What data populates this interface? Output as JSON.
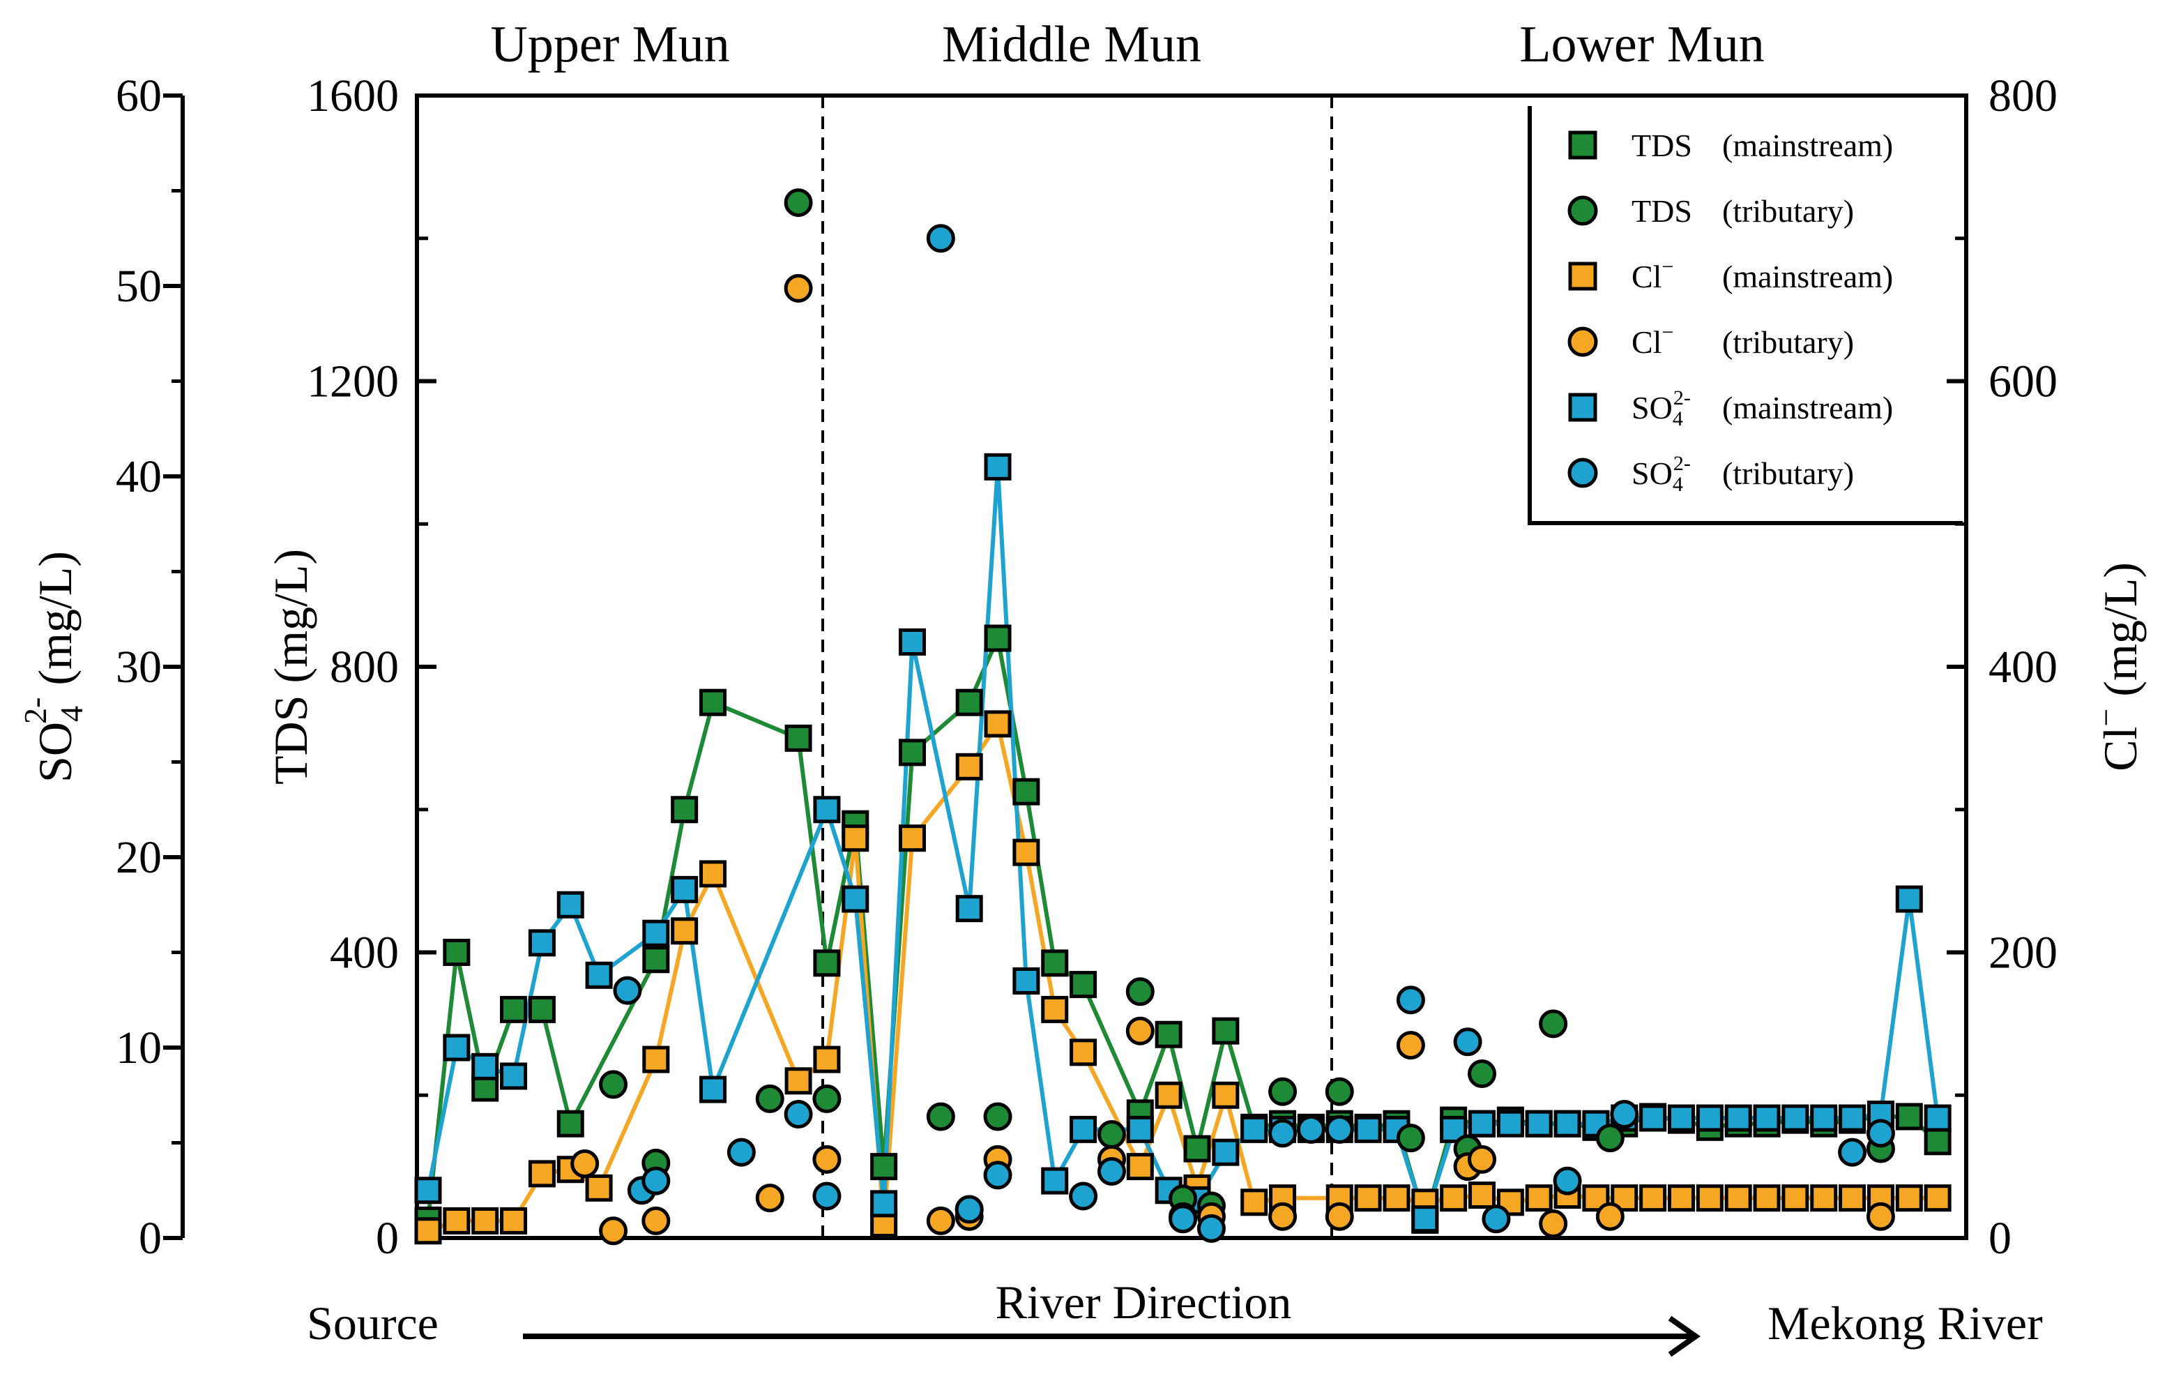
{
  "chart_data": {
    "type": "scatter",
    "title": "",
    "regions": [
      "Upper Mun",
      "Middle Mun",
      "Lower Mun"
    ],
    "region_boundaries_x": [
      28,
      63
    ],
    "xlabel": "River Direction",
    "x_start_label": "Source",
    "x_end_label": "Mekong River",
    "xlim": [
      0,
      108
    ],
    "axes": {
      "so4": {
        "label_main": "SO",
        "label_sub": "4",
        "label_sup": "2-",
        "label_unit": " (mg/L)",
        "ylim": [
          0,
          60
        ],
        "ticks": [
          "0",
          "10",
          "20",
          "30",
          "40",
          "50",
          "60"
        ]
      },
      "tds": {
        "label": "TDS (mg/L)",
        "ylim": [
          0,
          1600
        ],
        "ticks": [
          "0",
          "400",
          "800",
          "1200",
          "1600"
        ]
      },
      "cl": {
        "label_main": "Cl",
        "label_sup": "−",
        "label_unit": " (mg/L)",
        "ylim": [
          0,
          800
        ],
        "ticks": [
          "0",
          "200",
          "400",
          "600",
          "800"
        ]
      }
    },
    "legend": [
      {
        "name": "TDS",
        "qualifier": "(mainstream)",
        "sub": "",
        "sup": "",
        "color": "#1e8a35",
        "marker": "square"
      },
      {
        "name": "TDS",
        "qualifier": "(tributary)",
        "sub": "",
        "sup": "",
        "color": "#1e8a35",
        "marker": "circle"
      },
      {
        "name": "Cl",
        "qualifier": "(mainstream)",
        "sub": "",
        "sup": "−",
        "color": "#f5a623",
        "marker": "square"
      },
      {
        "name": "Cl",
        "qualifier": "(tributary)",
        "sub": "",
        "sup": "−",
        "color": "#f5a623",
        "marker": "circle"
      },
      {
        "name": "SO",
        "qualifier": "(mainstream)",
        "sub": "4",
        "sup": "2-",
        "color": "#1ea3d0",
        "marker": "square"
      },
      {
        "name": "SO",
        "qualifier": "(tributary)",
        "sub": "4",
        "sup": "2-",
        "color": "#1ea3d0",
        "marker": "circle"
      }
    ],
    "series": [
      {
        "name": "TDS (mainstream)",
        "axis": "tds",
        "marker": "square",
        "connected": true,
        "color": "#1e8a35",
        "points": [
          [
            0,
            25
          ],
          [
            2,
            400
          ],
          [
            4,
            210
          ],
          [
            6,
            320
          ],
          [
            8,
            320
          ],
          [
            10,
            160
          ],
          [
            16,
            390
          ],
          [
            18,
            600
          ],
          [
            20,
            750
          ],
          [
            26,
            700
          ],
          [
            28,
            385
          ],
          [
            30,
            580
          ],
          [
            32,
            100
          ],
          [
            34,
            680
          ],
          [
            38,
            750
          ],
          [
            40,
            840
          ],
          [
            42,
            625
          ],
          [
            44,
            385
          ],
          [
            46,
            355
          ],
          [
            50,
            175
          ],
          [
            52,
            285
          ],
          [
            54,
            125
          ],
          [
            56,
            290
          ],
          [
            58,
            155
          ],
          [
            60,
            160
          ],
          [
            62,
            155
          ],
          [
            64,
            160
          ],
          [
            66,
            155
          ],
          [
            68,
            160
          ],
          [
            70,
            25
          ],
          [
            72,
            165
          ],
          [
            74,
            160
          ],
          [
            76,
            165
          ],
          [
            78,
            160
          ],
          [
            80,
            160
          ],
          [
            82,
            155
          ],
          [
            84,
            160
          ],
          [
            86,
            170
          ],
          [
            88,
            165
          ],
          [
            90,
            155
          ],
          [
            92,
            160
          ],
          [
            94,
            160
          ],
          [
            96,
            165
          ],
          [
            98,
            160
          ],
          [
            100,
            165
          ],
          [
            102,
            170
          ],
          [
            104,
            170
          ],
          [
            106,
            135
          ]
        ]
      },
      {
        "name": "TDS (tributary)",
        "axis": "tds",
        "marker": "circle",
        "connected": false,
        "color": "#1e8a35",
        "points": [
          [
            13,
            215
          ],
          [
            16,
            105
          ],
          [
            24,
            195
          ],
          [
            26,
            1450
          ],
          [
            28,
            195
          ],
          [
            36,
            170
          ],
          [
            38,
            40
          ],
          [
            40,
            170
          ],
          [
            48,
            145
          ],
          [
            50,
            345
          ],
          [
            53,
            55
          ],
          [
            55,
            45
          ],
          [
            60,
            205
          ],
          [
            64,
            205
          ],
          [
            69,
            140
          ],
          [
            73,
            125
          ],
          [
            74,
            230
          ],
          [
            79,
            300
          ],
          [
            83,
            140
          ],
          [
            102,
            125
          ]
        ]
      },
      {
        "name": "Cl (mainstream)",
        "axis": "cl",
        "marker": "square",
        "connected": true,
        "color": "#f5a623",
        "points": [
          [
            0,
            5
          ],
          [
            2,
            12
          ],
          [
            4,
            12
          ],
          [
            6,
            12
          ],
          [
            8,
            45
          ],
          [
            10,
            48
          ],
          [
            12,
            35
          ],
          [
            16,
            125
          ],
          [
            18,
            215
          ],
          [
            20,
            255
          ],
          [
            26,
            110
          ],
          [
            28,
            125
          ],
          [
            30,
            280
          ],
          [
            32,
            10
          ],
          [
            34,
            280
          ],
          [
            38,
            330
          ],
          [
            40,
            360
          ],
          [
            42,
            270
          ],
          [
            44,
            160
          ],
          [
            46,
            130
          ],
          [
            50,
            50
          ],
          [
            52,
            100
          ],
          [
            54,
            35
          ],
          [
            56,
            100
          ],
          [
            58,
            25
          ],
          [
            60,
            28
          ],
          [
            64,
            28
          ],
          [
            66,
            28
          ],
          [
            68,
            28
          ],
          [
            70,
            25
          ],
          [
            72,
            28
          ],
          [
            74,
            30
          ],
          [
            76,
            25
          ],
          [
            78,
            28
          ],
          [
            80,
            30
          ],
          [
            82,
            28
          ],
          [
            84,
            28
          ],
          [
            86,
            28
          ],
          [
            88,
            28
          ],
          [
            90,
            28
          ],
          [
            92,
            28
          ],
          [
            94,
            28
          ],
          [
            96,
            28
          ],
          [
            98,
            28
          ],
          [
            100,
            28
          ],
          [
            102,
            28
          ],
          [
            104,
            28
          ],
          [
            106,
            28
          ]
        ]
      },
      {
        "name": "Cl (tributary)",
        "axis": "cl",
        "marker": "circle",
        "connected": false,
        "color": "#f5a623",
        "points": [
          [
            11,
            52
          ],
          [
            13,
            5
          ],
          [
            16,
            12
          ],
          [
            24,
            28
          ],
          [
            26,
            665
          ],
          [
            28,
            55
          ],
          [
            36,
            12
          ],
          [
            38,
            15
          ],
          [
            40,
            55
          ],
          [
            48,
            55
          ],
          [
            50,
            145
          ],
          [
            53,
            15
          ],
          [
            55,
            15
          ],
          [
            60,
            15
          ],
          [
            64,
            15
          ],
          [
            69,
            135
          ],
          [
            73,
            50
          ],
          [
            74,
            55
          ],
          [
            79,
            10
          ],
          [
            83,
            15
          ],
          [
            102,
            15
          ]
        ]
      },
      {
        "name": "SO4 (mainstream)",
        "axis": "so4",
        "marker": "square",
        "connected": true,
        "color": "#1ea3d0",
        "points": [
          [
            0,
            2.5
          ],
          [
            2,
            10
          ],
          [
            4,
            9
          ],
          [
            6,
            8.5
          ],
          [
            8,
            15.5
          ],
          [
            10,
            17.5
          ],
          [
            12,
            13.8
          ],
          [
            16,
            16
          ],
          [
            18,
            18.3
          ],
          [
            20,
            7.8
          ],
          [
            28,
            22.5
          ],
          [
            30,
            17.8
          ],
          [
            32,
            1.8
          ],
          [
            34,
            31.3
          ],
          [
            38,
            17.3
          ],
          [
            40,
            40.5
          ],
          [
            42,
            13.5
          ],
          [
            44,
            3
          ],
          [
            46,
            5.7
          ],
          [
            50,
            5.7
          ],
          [
            52,
            2.5
          ],
          [
            54,
            2
          ],
          [
            56,
            4.5
          ],
          [
            58,
            5.7
          ],
          [
            60,
            5.7
          ],
          [
            62,
            5.7
          ],
          [
            64,
            5.7
          ],
          [
            66,
            5.7
          ],
          [
            68,
            5.7
          ],
          [
            70,
            1
          ],
          [
            72,
            5.7
          ],
          [
            74,
            6
          ],
          [
            76,
            6
          ],
          [
            78,
            6
          ],
          [
            80,
            6
          ],
          [
            82,
            6
          ],
          [
            84,
            6.3
          ],
          [
            86,
            6.3
          ],
          [
            88,
            6.3
          ],
          [
            90,
            6.3
          ],
          [
            92,
            6.3
          ],
          [
            94,
            6.3
          ],
          [
            96,
            6.3
          ],
          [
            98,
            6.3
          ],
          [
            100,
            6.3
          ],
          [
            102,
            6.5
          ],
          [
            104,
            17.8
          ],
          [
            106,
            6.3
          ]
        ]
      },
      {
        "name": "SO4 (tributary)",
        "axis": "so4",
        "marker": "circle",
        "connected": false,
        "color": "#1ea3d0",
        "points": [
          [
            14,
            13
          ],
          [
            15,
            2.5
          ],
          [
            16,
            3
          ],
          [
            22,
            4.5
          ],
          [
            26,
            6.5
          ],
          [
            28,
            2.2
          ],
          [
            36,
            52.5
          ],
          [
            38,
            1.5
          ],
          [
            40,
            3.3
          ],
          [
            46,
            2.2
          ],
          [
            48,
            3.5
          ],
          [
            53,
            1
          ],
          [
            55,
            0.5
          ],
          [
            60,
            5.5
          ],
          [
            62,
            5.7
          ],
          [
            64,
            5.7
          ],
          [
            69,
            12.5
          ],
          [
            73,
            10.3
          ],
          [
            75,
            1
          ],
          [
            80,
            3
          ],
          [
            84,
            6.5
          ],
          [
            100,
            4.5
          ],
          [
            102,
            5.5
          ]
        ]
      }
    ]
  }
}
